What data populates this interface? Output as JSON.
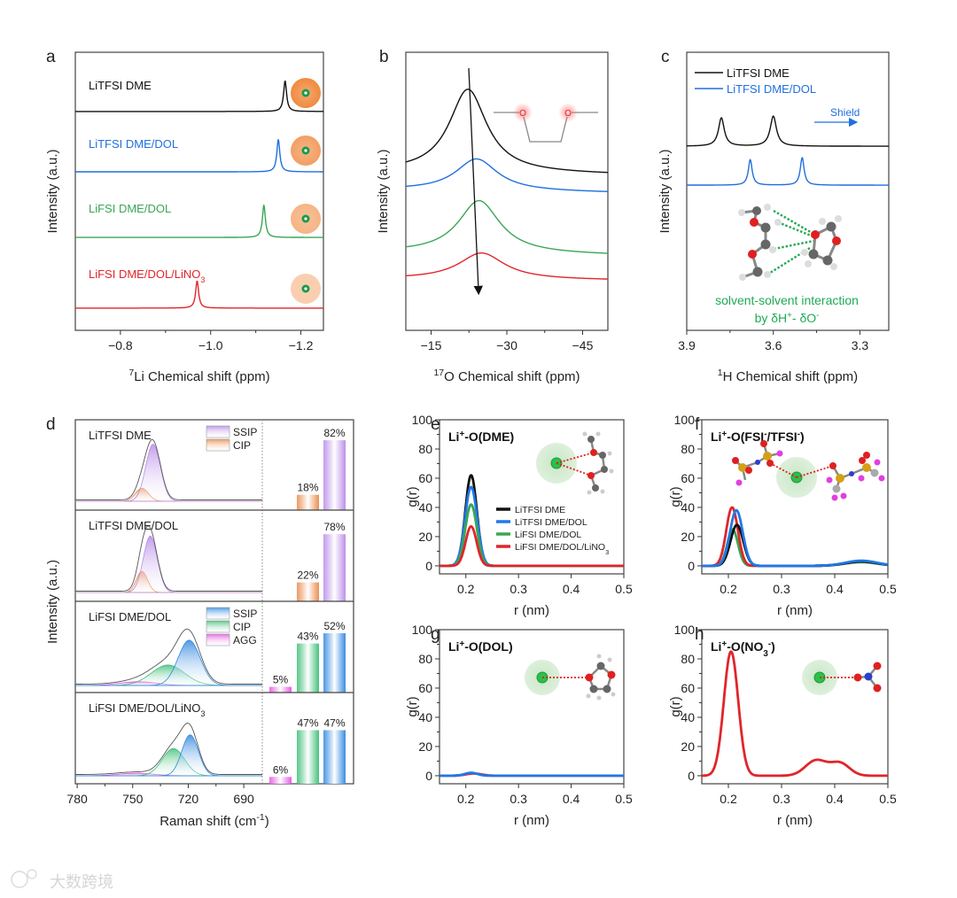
{
  "watermark": "大数跨境",
  "chart_data": [
    {
      "panel": "a",
      "type": "line",
      "shape": "lorentzian",
      "xlabel": [
        {
          "t": "7",
          "sup": true
        },
        {
          "t": "Li Chemical shift (ppm)"
        }
      ],
      "ylabel": [
        {
          "t": "Intensity (a.u.)"
        }
      ],
      "xlim": [
        -0.7,
        -1.25
      ],
      "ylim": [
        0,
        100
      ],
      "xticks": [
        -0.8,
        -1.0,
        -1.2
      ],
      "xtick_labels": [
        "−0.8",
        "−1.0",
        "−1.2"
      ],
      "minor_xticks": [
        -0.9,
        -1.1
      ],
      "series": [
        {
          "label": "LiTFSI DME",
          "color": "#111111",
          "baseline": [
            78.7,
            78.7
          ],
          "peaks": [
            {
              "center": -1.165,
              "height": 11,
              "width": 0.004
            }
          ],
          "solvation_shell_intensity": 1.0
        },
        {
          "label": "LiTFSI DME/DOL",
          "color": "#1f6fe0",
          "baseline": [
            57,
            57
          ],
          "peaks": [
            {
              "center": -1.15,
              "height": 11.6,
              "width": 0.004
            }
          ],
          "solvation_shell_intensity": 0.8
        },
        {
          "label": "LiFSI DME/DOL",
          "color": "#3aa655",
          "baseline": [
            33.4,
            33.4
          ],
          "peaks": [
            {
              "center": -1.118,
              "height": 11.6,
              "width": 0.004
            }
          ],
          "solvation_shell_intensity": 0.6
        },
        {
          "label": "LiFSI DME/DOL/LiNO",
          "label_sub": "3",
          "color": "#e0252a",
          "baseline": [
            8,
            8
          ],
          "peaks": [
            {
              "center": -0.97,
              "height": 9.8,
              "width": 0.004
            }
          ],
          "solvation_shell_intensity": 0.35
        }
      ]
    },
    {
      "panel": "b",
      "type": "line",
      "shape": "lorentzian",
      "xlabel": [
        {
          "t": "17",
          "sup": true
        },
        {
          "t": "O Chemical shift (ppm)"
        }
      ],
      "ylabel": [
        {
          "t": "Intensity (a.u.)"
        }
      ],
      "xlim": [
        -10,
        -50
      ],
      "ylim": [
        0,
        100
      ],
      "xticks": [
        -15,
        -30,
        -45
      ],
      "xtick_labels": [
        "−15",
        "−30",
        "−45"
      ],
      "minor_xticks": [
        -22.5,
        -37.5
      ],
      "inset_atom_label": "O",
      "series": [
        {
          "label": "LiTFSI DME",
          "color": "#111111",
          "baseline": [
            57,
            56
          ],
          "peaks": [
            {
              "center": -22.3,
              "height": 30,
              "width": 4.5
            }
          ]
        },
        {
          "label": "LiTFSI DME/DOL",
          "color": "#1f6fe0",
          "baseline": [
            50.5,
            49.5
          ],
          "peaks": [
            {
              "center": -24,
              "height": 11.5,
              "width": 5
            }
          ]
        },
        {
          "label": "LiFSI DME/DOL",
          "color": "#3aa655",
          "baseline": [
            28,
            27
          ],
          "peaks": [
            {
              "center": -24.5,
              "height": 19,
              "width": 5
            }
          ]
        },
        {
          "label": "LiFSI DME/DOL/LiNO3",
          "color": "#e0252a",
          "baseline": [
            18.5,
            18
          ],
          "peaks": [
            {
              "center": -25,
              "height": 9.5,
              "width": 5.5
            }
          ]
        }
      ],
      "trend_arrow": {
        "from": -22.3,
        "to": -25
      }
    },
    {
      "panel": "c",
      "type": "line",
      "shape": "lorentzian",
      "xlabel": [
        {
          "t": "1",
          "sup": true
        },
        {
          "t": "H Chemical shift (ppm)"
        }
      ],
      "ylabel": [
        {
          "t": "Intensity (a.u.)"
        }
      ],
      "xlim": [
        3.9,
        3.2
      ],
      "ylim": [
        0,
        100
      ],
      "xticks": [
        3.9,
        3.6,
        3.3
      ],
      "xtick_labels": [
        "3.9",
        "3.6",
        "3.3"
      ],
      "minor_xticks": [
        3.75,
        3.45
      ],
      "legend_position": "top-left",
      "series": [
        {
          "label": "LiTFSI DME",
          "color": "#111111",
          "baseline": [
            66.2,
            66.2
          ],
          "peaks": [
            {
              "center": 3.78,
              "height": 10.2,
              "width": 0.012
            },
            {
              "center": 3.6,
              "height": 10.8,
              "width": 0.013
            }
          ]
        },
        {
          "label": "LiTFSI DME/DOL",
          "color": "#1f6fe0",
          "baseline": [
            52.2,
            52.2
          ],
          "peaks": [
            {
              "center": 3.68,
              "height": 9.2,
              "width": 0.008
            },
            {
              "center": 3.5,
              "height": 9.9,
              "width": 0.008
            }
          ]
        }
      ],
      "annotation_shield": "Shield",
      "annotation_line1": "solvent-solvent  interaction",
      "annotation_line2": [
        {
          "t": "by δH"
        },
        {
          "t": "+",
          "sup": true
        },
        {
          "t": "- δO"
        },
        {
          "t": "-",
          "sup": true
        }
      ]
    },
    {
      "panel": "d",
      "type": "area+bar",
      "xlabel": [
        {
          "t": "Raman shift (cm"
        },
        {
          "t": "-1",
          "sup": true
        },
        {
          "t": ")"
        }
      ],
      "ylabel": [
        {
          "t": "Intensity (a.u.)"
        }
      ],
      "xlim": [
        781,
        680
      ],
      "xticks": [
        780,
        750,
        720,
        690
      ],
      "xtick_labels": [
        "780",
        "750",
        "720",
        "690"
      ],
      "minor_xticks": [
        765,
        735,
        705
      ],
      "subpanels": [
        {
          "label": "LiTFSI DME",
          "bar_ymax": 106,
          "legend": [
            "SSIP",
            "CIP"
          ],
          "components": [
            {
              "name": "SSIP",
              "center": 739,
              "height": 0.92,
              "width": 4,
              "color": "#b98be8"
            },
            {
              "name": "CIP",
              "center": 745,
              "height": 0.21,
              "width": 3.5,
              "color": "#e98a4a"
            }
          ],
          "bars": [
            {
              "name": "CIP",
              "value": 18,
              "text": "18%",
              "color": "#e98a4a"
            },
            {
              "name": "SSIP",
              "value": 82,
              "text": "82%",
              "color": "#b98be8"
            }
          ]
        },
        {
          "label": "LiTFSI DME/DOL",
          "bar_ymax": 106,
          "components": [
            {
              "name": "SSIP",
              "center": 740.5,
              "height": 0.91,
              "width": 3.8,
              "color": "#b98be8"
            },
            {
              "name": "CIP",
              "center": 745,
              "height": 0.34,
              "width": 3,
              "color": "#e98a4a"
            }
          ],
          "bars": [
            {
              "name": "CIP",
              "value": 22,
              "text": "22%",
              "color": "#e98a4a"
            },
            {
              "name": "SSIP",
              "value": 78,
              "text": "78%",
              "color": "#b98be8"
            }
          ]
        },
        {
          "label": "LiFSI DME/DOL",
          "bar_ymax": 80,
          "legend": [
            "SSIP",
            "CIP",
            "AGG"
          ],
          "components": [
            {
              "name": "SSIP",
              "center": 719.5,
              "height": 0.73,
              "width": 6,
              "color": "#2f87e0"
            },
            {
              "name": "CIP",
              "center": 731,
              "height": 0.33,
              "width": 9,
              "color": "#3dbf76"
            },
            {
              "name": "AGG",
              "center": 747,
              "height": 0.06,
              "width": 10,
              "color": "#e455e0"
            }
          ],
          "bars": [
            {
              "name": "AGG",
              "value": 5,
              "text": "5%",
              "color": "#e455e0"
            },
            {
              "name": "CIP",
              "value": 43,
              "text": "43%",
              "color": "#3dbf76"
            },
            {
              "name": "SSIP",
              "value": 52,
              "text": "52%",
              "color": "#2f87e0"
            }
          ]
        },
        {
          "label": "LiFSI DME/DOL/LiNO",
          "label_sub": "3",
          "bar_ymax": 80,
          "components": [
            {
              "name": "SSIP",
              "center": 719,
              "height": 0.66,
              "width": 4.5,
              "color": "#2f87e0"
            },
            {
              "name": "CIP",
              "center": 728,
              "height": 0.44,
              "width": 6,
              "color": "#3dbf76"
            },
            {
              "name": "AGG",
              "center": 748,
              "height": 0.04,
              "width": 10,
              "color": "#e455e0"
            }
          ],
          "bars": [
            {
              "name": "AGG",
              "value": 6,
              "text": "6%",
              "color": "#e455e0"
            },
            {
              "name": "CIP",
              "value": 47,
              "text": "47%",
              "color": "#3dbf76"
            },
            {
              "name": "SSIP",
              "value": 47,
              "text": "47%",
              "color": "#2f87e0"
            }
          ]
        }
      ]
    },
    {
      "panel": "e",
      "type": "line",
      "shape": "gaussian",
      "title": [
        {
          "t": "Li"
        },
        {
          "t": "+",
          "sup": true
        },
        {
          "t": "-O(DME)"
        }
      ],
      "xlabel": [
        {
          "t": "r (nm)"
        }
      ],
      "ylabel": [
        {
          "t": "g(r)"
        }
      ],
      "xlim": [
        0.15,
        0.5
      ],
      "ylim": [
        -5.5,
        100
      ],
      "xticks": [
        0.2,
        0.3,
        0.4,
        0.5
      ],
      "xtick_labels": [
        "0.2",
        "0.3",
        "0.4",
        "0.5"
      ],
      "yticks": [
        0,
        20,
        40,
        60,
        80,
        100
      ],
      "ytick_labels": [
        "0",
        "20",
        "40",
        "60",
        "80",
        "100"
      ],
      "legend_position": "center-right",
      "series": [
        {
          "label": "LiTFSI DME",
          "color": "#111111",
          "baseline": [
            0,
            0
          ],
          "peaks": [
            {
              "center": 0.21,
              "height": 62,
              "width": 0.011
            }
          ]
        },
        {
          "label": "LiTFSI DME/DOL",
          "color": "#1f78e8",
          "baseline": [
            0,
            0
          ],
          "peaks": [
            {
              "center": 0.21,
              "height": 54,
              "width": 0.0115
            }
          ]
        },
        {
          "label": "LiFSI DME/DOL",
          "color": "#3aa655",
          "baseline": [
            0,
            0
          ],
          "peaks": [
            {
              "center": 0.21,
              "height": 42,
              "width": 0.011
            }
          ]
        },
        {
          "label": "LiFSI DME/DOL/LiNO",
          "label_sub": "3",
          "color": "#e0252a",
          "baseline": [
            0,
            0
          ],
          "peaks": [
            {
              "center": 0.21,
              "height": 27,
              "width": 0.0105
            }
          ]
        }
      ]
    },
    {
      "panel": "f",
      "type": "line",
      "shape": "gaussian",
      "title": [
        {
          "t": "Li"
        },
        {
          "t": "+",
          "sup": true
        },
        {
          "t": "-O(FSI"
        },
        {
          "t": "-",
          "sup": true
        },
        {
          "t": "/TFSI"
        },
        {
          "t": "-",
          "sup": true
        },
        {
          "t": ")"
        }
      ],
      "xlabel": [
        {
          "t": "r (nm)"
        }
      ],
      "ylabel": [
        {
          "t": "g(r)"
        }
      ],
      "xlim": [
        0.15,
        0.5
      ],
      "ylim": [
        -5.5,
        100
      ],
      "xticks": [
        0.2,
        0.3,
        0.4,
        0.5
      ],
      "xtick_labels": [
        "0.2",
        "0.3",
        "0.4",
        "0.5"
      ],
      "yticks": [
        0,
        20,
        40,
        60,
        80,
        100
      ],
      "ytick_labels": [
        "0",
        "20",
        "40",
        "60",
        "80",
        "100"
      ],
      "series": [
        {
          "label": "LiFSI DME/DOL",
          "color": "#3aa655",
          "baseline": [
            0,
            0
          ],
          "peaks": [
            {
              "center": 0.208,
              "height": 25,
              "width": 0.01
            },
            {
              "center": 0.45,
              "height": 2.5,
              "width": 0.03
            }
          ]
        },
        {
          "label": "LiFSI DME/DOL/LiNO3",
          "color": "#e0252a",
          "baseline": [
            0,
            0
          ],
          "peaks": [
            {
              "center": 0.207,
              "height": 40,
              "width": 0.011
            },
            {
              "center": 0.45,
              "height": 3,
              "width": 0.03
            }
          ]
        },
        {
          "label": "LiTFSI DME",
          "color": "#111111",
          "baseline": [
            0,
            0
          ],
          "peaks": [
            {
              "center": 0.216,
              "height": 28,
              "width": 0.012
            },
            {
              "center": 0.45,
              "height": 3,
              "width": 0.03
            }
          ]
        },
        {
          "label": "LiTFSI DME/DOL",
          "color": "#1f78e8",
          "baseline": [
            0,
            0
          ],
          "peaks": [
            {
              "center": 0.215,
              "height": 38,
              "width": 0.012
            },
            {
              "center": 0.45,
              "height": 3.5,
              "width": 0.03
            }
          ]
        }
      ]
    },
    {
      "panel": "g",
      "type": "line",
      "shape": "gaussian",
      "title": [
        {
          "t": "Li"
        },
        {
          "t": "+",
          "sup": true
        },
        {
          "t": "-O(DOL)"
        }
      ],
      "xlabel": [
        {
          "t": "r (nm)"
        }
      ],
      "ylabel": [
        {
          "t": "g(r)"
        }
      ],
      "xlim": [
        0.15,
        0.5
      ],
      "ylim": [
        -5.5,
        100
      ],
      "xticks": [
        0.2,
        0.3,
        0.4,
        0.5
      ],
      "xtick_labels": [
        "0.2",
        "0.3",
        "0.4",
        "0.5"
      ],
      "yticks": [
        0,
        20,
        40,
        60,
        80,
        100
      ],
      "ytick_labels": [
        "0",
        "20",
        "40",
        "60",
        "80",
        "100"
      ],
      "series": [
        {
          "label": "LiFSI DME/DOL/LiNO3",
          "color": "#e0252a",
          "baseline": [
            0,
            0
          ],
          "peaks": [
            {
              "center": 0.215,
              "height": 1.5,
              "width": 0.015
            }
          ]
        },
        {
          "label": "LiTFSI DME/DOL",
          "color": "#1f78e8",
          "baseline": [
            0,
            0
          ],
          "peaks": [
            {
              "center": 0.21,
              "height": 2,
              "width": 0.012
            }
          ]
        }
      ]
    },
    {
      "panel": "h",
      "type": "line",
      "shape": "gaussian",
      "title": [
        {
          "t": "Li"
        },
        {
          "t": "+",
          "sup": true
        },
        {
          "t": "-O(NO"
        },
        {
          "t": "3",
          "sub": true
        },
        {
          "t": "-",
          "sup": true
        },
        {
          "t": ")"
        }
      ],
      "xlabel": [
        {
          "t": "r (nm)"
        }
      ],
      "ylabel": [
        {
          "t": "g(r)"
        }
      ],
      "xlim": [
        0.15,
        0.5
      ],
      "ylim": [
        -5.5,
        100
      ],
      "xticks": [
        0.2,
        0.3,
        0.4,
        0.5
      ],
      "xtick_labels": [
        "0.2",
        "0.3",
        "0.4",
        "0.5"
      ],
      "yticks": [
        0,
        20,
        40,
        60,
        80,
        100
      ],
      "ytick_labels": [
        "0",
        "20",
        "40",
        "60",
        "80",
        "100"
      ],
      "series": [
        {
          "label": "LiFSI DME/DOL/LiNO3",
          "color": "#e0252a",
          "baseline": [
            0,
            0
          ],
          "peaks": [
            {
              "center": 0.205,
              "height": 85,
              "width": 0.0135
            },
            {
              "center": 0.365,
              "height": 10.5,
              "width": 0.02
            },
            {
              "center": 0.41,
              "height": 8.5,
              "width": 0.018
            }
          ]
        }
      ]
    }
  ]
}
